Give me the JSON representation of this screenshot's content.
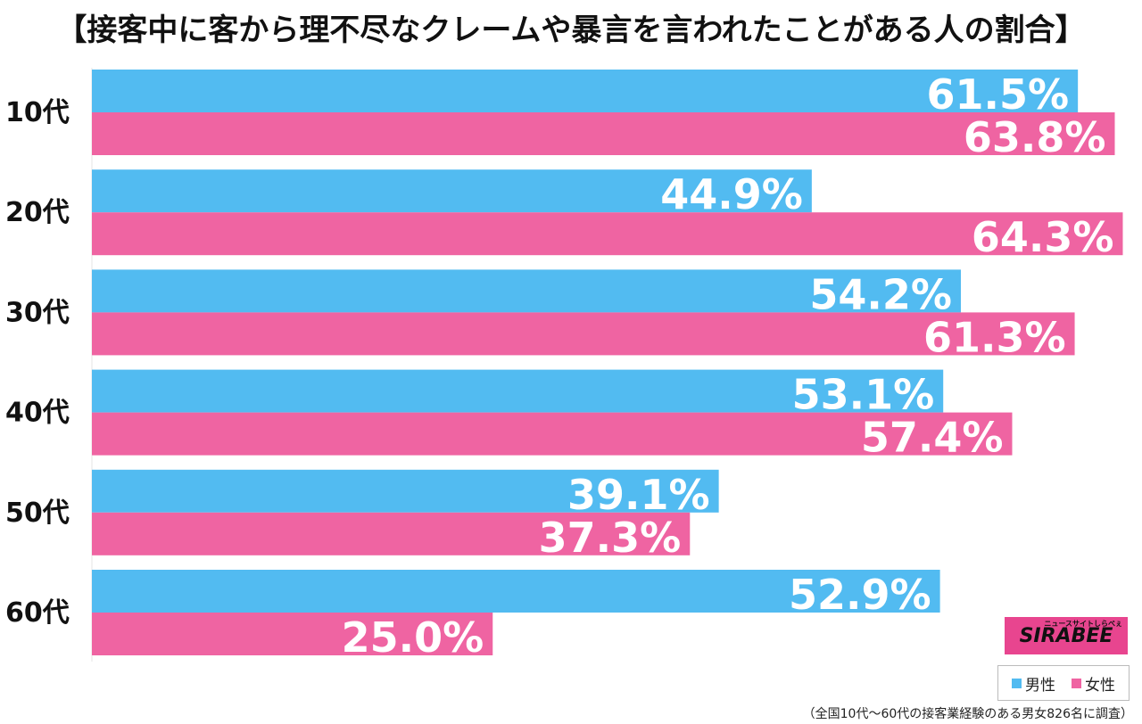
{
  "title": "【接客中に客から理不尽なクレームや暴言を言われたことがある人の割合】",
  "footnote": "（全国10代〜60代の接客業経験のある男女826名に調査）",
  "logo": {
    "text": "SIRABEE",
    "subtext": "ニュースサイトしらべぇ",
    "color": "#e8458f"
  },
  "colors": {
    "male": "#52bbf1",
    "female": "#ef64a2"
  },
  "chart_data": {
    "type": "bar",
    "orientation": "horizontal",
    "title": "【接客中に客から理不尽なクレームや暴言を言われたことがある人の割合】",
    "categories": [
      "10代",
      "20代",
      "30代",
      "40代",
      "50代",
      "60代"
    ],
    "series": [
      {
        "name": "男性",
        "values": [
          61.5,
          44.9,
          54.2,
          53.1,
          39.1,
          52.9
        ],
        "labels": [
          "61.5%",
          "44.9%",
          "54.2%",
          "53.1%",
          "39.1%",
          "52.9%"
        ]
      },
      {
        "name": "女性",
        "values": [
          63.8,
          64.3,
          61.3,
          57.4,
          37.3,
          25.0
        ],
        "labels": [
          "63.8%",
          "64.3%",
          "61.3%",
          "57.4%",
          "37.3%",
          "25.0%"
        ]
      }
    ],
    "xlim": [
      0,
      66
    ],
    "unit": "%",
    "grid": false,
    "legend": "bottom-right"
  }
}
